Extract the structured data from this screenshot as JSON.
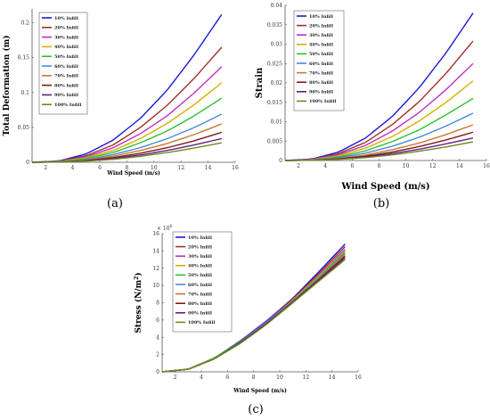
{
  "chart_data": [
    {
      "type": "line",
      "panel_label": "(a)",
      "xlabel": "Wind Speed (m/s)",
      "ylabel": "Total Deformation (m)",
      "xlim": [
        1,
        16
      ],
      "ylim": [
        0,
        0.22
      ],
      "xticks": [
        "2",
        "4",
        "6",
        "8",
        "10",
        "12",
        "14",
        "16"
      ],
      "yticks": [
        "0",
        "0.05",
        "0.1",
        "0.15",
        "0.2"
      ],
      "y_exponent": "",
      "x": [
        1,
        3,
        5,
        7,
        9,
        11,
        13,
        15
      ],
      "series": [
        {
          "name": "10% Infill",
          "color": "#1a1ad6",
          "values": [
            0,
            0.002,
            0.012,
            0.032,
            0.063,
            0.104,
            0.155,
            0.212
          ]
        },
        {
          "name": "20% Infill",
          "color": "#a0302a",
          "values": [
            0,
            0.0016,
            0.0095,
            0.025,
            0.05,
            0.082,
            0.121,
            0.165
          ]
        },
        {
          "name": "30% Infill",
          "color": "#c030c0",
          "values": [
            0,
            0.0013,
            0.0078,
            0.021,
            0.041,
            0.067,
            0.1,
            0.137
          ]
        },
        {
          "name": "40% Infill",
          "color": "#d4b000",
          "values": [
            0,
            0.0011,
            0.0065,
            0.017,
            0.034,
            0.056,
            0.083,
            0.114
          ]
        },
        {
          "name": "50% Infill",
          "color": "#30c030",
          "values": [
            0,
            0.0009,
            0.0053,
            0.014,
            0.028,
            0.045,
            0.067,
            0.092
          ]
        },
        {
          "name": "60% Infill",
          "color": "#4a8ad8",
          "values": [
            0,
            0.0007,
            0.004,
            0.011,
            0.021,
            0.034,
            0.05,
            0.069
          ]
        },
        {
          "name": "70% Infill",
          "color": "#c87830",
          "values": [
            0,
            0.0005,
            0.0032,
            0.0086,
            0.017,
            0.027,
            0.04,
            0.055
          ]
        },
        {
          "name": "80% Infill",
          "color": "#801818",
          "values": [
            0,
            0.0004,
            0.0025,
            0.0066,
            0.013,
            0.021,
            0.031,
            0.043
          ]
        },
        {
          "name": "90% Infill",
          "color": "#602080",
          "values": [
            0,
            0.00034,
            0.002,
            0.0053,
            0.0105,
            0.017,
            0.025,
            0.034
          ]
        },
        {
          "name": "100% Infill",
          "color": "#6a8a20",
          "values": [
            0,
            0.00028,
            0.0016,
            0.0043,
            0.0085,
            0.014,
            0.0205,
            0.028
          ]
        }
      ]
    },
    {
      "type": "line",
      "panel_label": "(b)",
      "xlabel": "Wind Speed (m/s)",
      "ylabel": "Strain",
      "xlim": [
        1,
        16
      ],
      "ylim": [
        0,
        0.04
      ],
      "xticks": [
        "2",
        "4",
        "6",
        "8",
        "10",
        "12",
        "14",
        "16"
      ],
      "yticks": [
        "0",
        "0.005",
        "0.01",
        "0.015",
        "0.02",
        "0.025",
        "0.03",
        "0.035",
        "0.04"
      ],
      "y_exponent": "",
      "x": [
        1,
        3,
        5,
        7,
        9,
        11,
        13,
        15
      ],
      "series": [
        {
          "name": "10% Infill",
          "color": "#1a1ad6",
          "values": [
            0,
            0.0004,
            0.0022,
            0.0058,
            0.0114,
            0.0188,
            0.0278,
            0.038
          ]
        },
        {
          "name": "20% Infill",
          "color": "#a0302a",
          "values": [
            0,
            0.00032,
            0.0018,
            0.0047,
            0.0093,
            0.0152,
            0.0225,
            0.0308
          ]
        },
        {
          "name": "30% Infill",
          "color": "#c030c0",
          "values": [
            0,
            0.00027,
            0.0015,
            0.0039,
            0.0076,
            0.0124,
            0.0183,
            0.025
          ]
        },
        {
          "name": "40% Infill",
          "color": "#d4b000",
          "values": [
            0,
            0.00022,
            0.0012,
            0.0032,
            0.0062,
            0.0102,
            0.015,
            0.0205
          ]
        },
        {
          "name": "50% Infill",
          "color": "#30c030",
          "values": [
            0,
            0.00017,
            0.00095,
            0.0025,
            0.0049,
            0.0079,
            0.0118,
            0.016
          ]
        },
        {
          "name": "60% Infill",
          "color": "#4a8ad8",
          "values": [
            0,
            0.00013,
            0.00072,
            0.0019,
            0.0037,
            0.006,
            0.0089,
            0.0122
          ]
        },
        {
          "name": "70% Infill",
          "color": "#c87830",
          "values": [
            0,
            0.0001,
            0.00054,
            0.0014,
            0.0028,
            0.0045,
            0.0067,
            0.0092
          ]
        },
        {
          "name": "80% Infill",
          "color": "#801818",
          "values": [
            0,
            8e-05,
            0.00043,
            0.0011,
            0.0022,
            0.0036,
            0.0053,
            0.0073
          ]
        },
        {
          "name": "90% Infill",
          "color": "#602080",
          "values": [
            0,
            6.5e-05,
            0.00035,
            0.0009,
            0.0018,
            0.0029,
            0.0043,
            0.0058
          ]
        },
        {
          "name": "100% Infill",
          "color": "#6a8a20",
          "values": [
            0,
            5e-05,
            0.00028,
            0.00074,
            0.00145,
            0.0024,
            0.0035,
            0.0048
          ]
        }
      ]
    },
    {
      "type": "line",
      "panel_label": "(c)",
      "xlabel": "Wind Speed (m/s)",
      "ylabel": "Stress (N/m",
      "ylabel_sup": "2",
      "ylabel_end": ")",
      "xlim": [
        1,
        16
      ],
      "ylim": [
        0,
        16
      ],
      "xticks": [
        "2",
        "4",
        "6",
        "8",
        "10",
        "12",
        "14",
        "16"
      ],
      "yticks": [
        "0",
        "2",
        "4",
        "6",
        "8",
        "10",
        "12",
        "14",
        "16"
      ],
      "y_exponent": "× 10",
      "y_exponent_power": "6",
      "x": [
        1,
        3,
        5,
        7,
        9,
        11,
        13,
        15
      ],
      "series": [
        {
          "name": "10% Infill",
          "color": "#1a1ad6",
          "values": [
            0,
            0.3,
            1.6,
            3.6,
            5.9,
            8.5,
            11.6,
            14.8
          ]
        },
        {
          "name": "20% Infill",
          "color": "#a0302a",
          "values": [
            0,
            0.3,
            1.6,
            3.5,
            5.8,
            8.4,
            11.4,
            14.5
          ]
        },
        {
          "name": "30% Infill",
          "color": "#c030c0",
          "values": [
            0,
            0.3,
            1.6,
            3.5,
            5.8,
            8.3,
            11.2,
            14.2
          ]
        },
        {
          "name": "40% Infill",
          "color": "#d4b000",
          "values": [
            0,
            0.3,
            1.6,
            3.5,
            5.7,
            8.3,
            11.1,
            14.0
          ]
        },
        {
          "name": "50% Infill",
          "color": "#30c030",
          "values": [
            0,
            0.3,
            1.6,
            3.5,
            5.7,
            8.2,
            11.0,
            13.9
          ]
        },
        {
          "name": "60% Infill",
          "color": "#4a8ad8",
          "values": [
            0,
            0.3,
            1.5,
            3.4,
            5.7,
            8.2,
            10.9,
            13.7
          ]
        },
        {
          "name": "70% Infill",
          "color": "#c87830",
          "values": [
            0,
            0.3,
            1.5,
            3.4,
            5.6,
            8.1,
            10.8,
            13.6
          ]
        },
        {
          "name": "80% Infill",
          "color": "#801818",
          "values": [
            0,
            0.3,
            1.5,
            3.4,
            5.6,
            8.1,
            10.7,
            13.4
          ]
        },
        {
          "name": "90% Infill",
          "color": "#602080",
          "values": [
            0,
            0.3,
            1.5,
            3.4,
            5.6,
            8.0,
            10.6,
            13.2
          ]
        },
        {
          "name": "100% Infill",
          "color": "#6a8a20",
          "values": [
            0,
            0.3,
            1.5,
            3.3,
            5.5,
            8.0,
            10.5,
            13.0
          ]
        }
      ]
    }
  ]
}
